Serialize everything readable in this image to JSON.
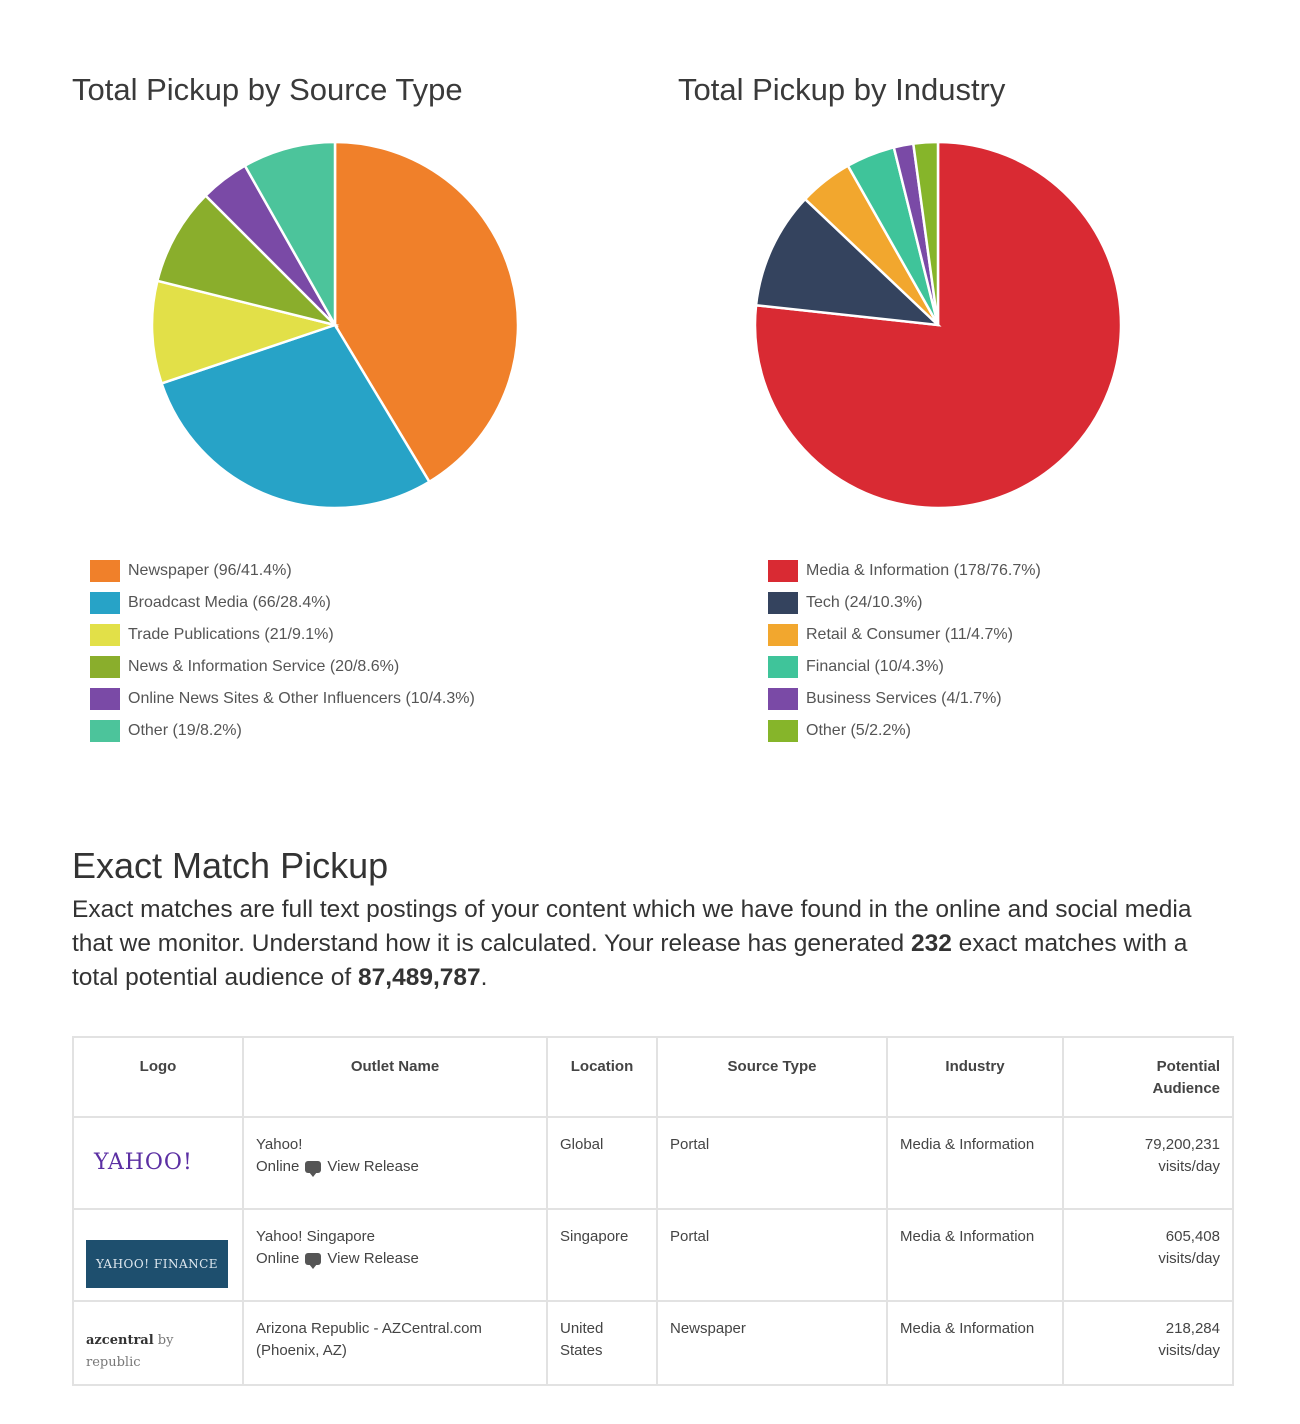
{
  "chart_data": [
    {
      "type": "pie",
      "title": "Total Pickup by Source Type",
      "categories": [
        "Newspaper (96/41.4%)",
        "Broadcast Media (66/28.4%)",
        "Trade Publications (21/9.1%)",
        "News & Information Service (20/8.6%)",
        "Online News Sites & Other Influencers (10/4.3%)",
        "Other (19/8.2%)"
      ],
      "values": [
        96,
        66,
        21,
        20,
        10,
        19
      ],
      "colors": [
        "#f0802a",
        "#27a3c7",
        "#e2e048",
        "#8aae2c",
        "#7a4aa6",
        "#4cc49b"
      ],
      "legend": "bottom"
    },
    {
      "type": "pie",
      "title": "Total Pickup by Industry",
      "categories": [
        "Media & Information (178/76.7%)",
        "Tech (24/10.3%)",
        "Retail & Consumer (11/4.7%)",
        "Financial (10/4.3%)",
        "Business Services (4/1.7%)",
        "Other (5/2.2%)"
      ],
      "values": [
        178,
        24,
        11,
        10,
        4,
        5
      ],
      "colors": [
        "#d92a33",
        "#34435e",
        "#f2a72e",
        "#3fc49a",
        "#7a4aa6",
        "#86b52a"
      ],
      "legend": "bottom"
    }
  ],
  "exact_match": {
    "title": "Exact Match Pickup",
    "desc_1": "Exact matches are full text postings of your content which we have found in the online and social media that we monitor. Understand how it is calculated. Your release has generated ",
    "count": "232",
    "desc_2": " exact matches with a total potential audience of ",
    "audience": "87,489,787",
    "desc_3": "."
  },
  "table": {
    "headers": {
      "logo": "Logo",
      "outlet": "Outlet Name",
      "location": "Location",
      "source_type": "Source Type",
      "industry": "Industry",
      "audience_1": "Potential",
      "audience_2": "Audience"
    },
    "rows": [
      {
        "logo_text": "YAHOO!",
        "outlet_name": "Yahoo!",
        "outlet_type": "Online",
        "view_label": "View Release",
        "location": "Global",
        "source_type": "Portal",
        "industry": "Media & Information",
        "audience": "79,200,231",
        "audience_unit": "visits/day"
      },
      {
        "logo_text": "YAHOO! FINANCE",
        "outlet_name": "Yahoo! Singapore",
        "outlet_type": "Online",
        "view_label": "View Release",
        "location": "Singapore",
        "source_type": "Portal",
        "industry": "Media & Information",
        "audience": "605,408",
        "audience_unit": "visits/day"
      },
      {
        "logo_text_bold": "azcentral",
        "logo_text_rest": " by republic",
        "outlet_name": "Arizona Republic - AZCentral.com (Phoenix, AZ)",
        "location": "United States",
        "source_type": "Newspaper",
        "industry": "Media & Information",
        "audience": "218,284",
        "audience_unit": "visits/day"
      }
    ]
  }
}
